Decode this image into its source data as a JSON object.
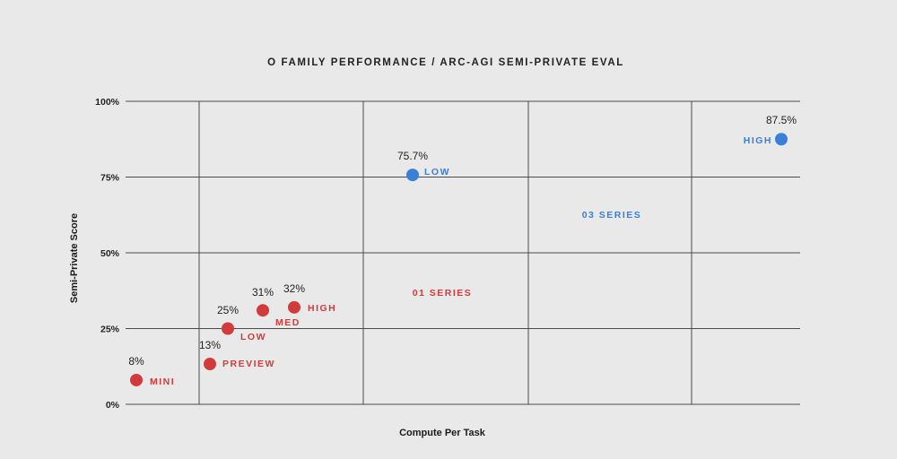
{
  "colors": {
    "o1": "#d23b3b",
    "o3": "#3a7fd8",
    "grid": "#4a4a4a",
    "background": "#e9e9e9",
    "text": "#222222"
  },
  "chart_data": {
    "type": "scatter",
    "title": "O FAMILY PERFORMANCE / ARC-AGI SEMI-PRIVATE EVAL",
    "xlabel": "Compute Per Task",
    "ylabel": "Semi-Private Score",
    "ylim": [
      0,
      100
    ],
    "yticks": [
      {
        "value": 0,
        "label": "0%"
      },
      {
        "value": 25,
        "label": "25%"
      },
      {
        "value": 50,
        "label": "50%"
      },
      {
        "value": 75,
        "label": "75%"
      },
      {
        "value": 100,
        "label": "100%"
      }
    ],
    "x_tick_labels": "none",
    "grid": true,
    "series_annotations": [
      {
        "text": "01 SERIES",
        "color": "#d23b3b"
      },
      {
        "text": "03 SERIES",
        "color": "#3a7fd8"
      }
    ],
    "points": [
      {
        "name": "MINI",
        "value_label": "8%",
        "y": 8,
        "color": "#d23b3b"
      },
      {
        "name": "PREVIEW",
        "value_label": "13%",
        "y": 13.3,
        "color": "#d23b3b"
      },
      {
        "name": "LOW",
        "value_label": "25%",
        "y": 25,
        "color": "#d23b3b"
      },
      {
        "name": "MED",
        "value_label": "31%",
        "y": 31,
        "color": "#d23b3b"
      },
      {
        "name": "HIGH",
        "value_label": "32%",
        "y": 32,
        "color": "#d23b3b"
      },
      {
        "name": "LOW",
        "value_label": "75.7%",
        "y": 75.7,
        "color": "#3a7fd8"
      },
      {
        "name": "HIGH",
        "value_label": "87.5%",
        "y": 87.5,
        "color": "#3a7fd8"
      }
    ]
  }
}
